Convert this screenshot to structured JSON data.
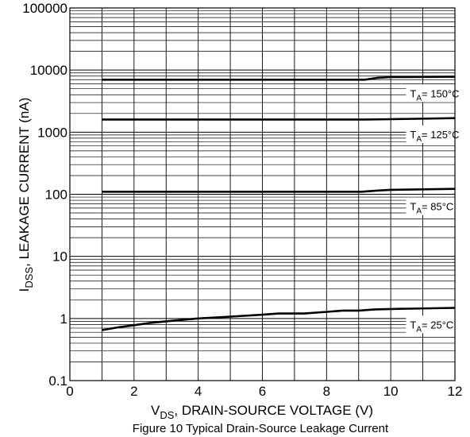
{
  "chart_data": {
    "type": "line",
    "title": "",
    "caption": "Figure 10 Typical Drain-Source Leakage Current",
    "xlabel": {
      "main": "V",
      "sub": "DS",
      "rest": ", DRAIN-SOURCE VOLTAGE (V)"
    },
    "ylabel": {
      "main": "I",
      "sub": "DSS",
      "rest": ", LEAKAGE CURRENT (nA)"
    },
    "xlim": [
      0,
      12
    ],
    "ylim": [
      0.1,
      100000
    ],
    "yscale": "log",
    "grid": true,
    "xticks": [
      0,
      2,
      4,
      6,
      8,
      10,
      12
    ],
    "xtick_labels": [
      "0",
      "2",
      "4",
      "6",
      "8",
      "10",
      "12"
    ],
    "yticks": [
      0.1,
      1,
      10,
      100,
      1000,
      10000,
      100000
    ],
    "ytick_labels": [
      "0.1",
      "1",
      "10",
      "100",
      "1000",
      "10000",
      "100000"
    ],
    "series": [
      {
        "label": {
          "main": "T",
          "sub": "A",
          "rest": "= 150°C"
        },
        "label_at": {
          "x": 10.6,
          "y": 4100
        },
        "points": [
          [
            1,
            7000
          ],
          [
            2,
            7000
          ],
          [
            4,
            7000
          ],
          [
            6,
            7000
          ],
          [
            8,
            7000
          ],
          [
            9.2,
            7000
          ],
          [
            9.6,
            7500
          ],
          [
            10,
            7700
          ],
          [
            12,
            7800
          ]
        ]
      },
      {
        "label": {
          "main": "T",
          "sub": "A",
          "rest": "= 125°C"
        },
        "label_at": {
          "x": 10.6,
          "y": 900
        },
        "points": [
          [
            1,
            1600
          ],
          [
            2,
            1600
          ],
          [
            4,
            1600
          ],
          [
            6,
            1600
          ],
          [
            8,
            1600
          ],
          [
            9.2,
            1600
          ],
          [
            10,
            1620
          ],
          [
            12,
            1680
          ]
        ]
      },
      {
        "label": {
          "main": "T",
          "sub": "A",
          "rest": "= 85°C"
        },
        "label_at": {
          "x": 10.6,
          "y": 62
        },
        "points": [
          [
            1,
            110
          ],
          [
            2,
            110
          ],
          [
            4,
            110
          ],
          [
            6,
            110
          ],
          [
            8,
            110
          ],
          [
            9.1,
            110
          ],
          [
            9.6,
            115
          ],
          [
            10,
            118
          ],
          [
            11,
            120
          ],
          [
            12,
            122
          ]
        ]
      },
      {
        "label": {
          "main": "T",
          "sub": "A",
          "rest": "= 25°C"
        },
        "label_at": {
          "x": 10.6,
          "y": 0.78
        },
        "points": [
          [
            1,
            0.65
          ],
          [
            1.5,
            0.72
          ],
          [
            2,
            0.78
          ],
          [
            2.5,
            0.85
          ],
          [
            3,
            0.9
          ],
          [
            3.5,
            0.95
          ],
          [
            4,
            1.0
          ],
          [
            5,
            1.07
          ],
          [
            6,
            1.15
          ],
          [
            6.5,
            1.2
          ],
          [
            7.3,
            1.2
          ],
          [
            8,
            1.28
          ],
          [
            8.5,
            1.34
          ],
          [
            9,
            1.34
          ],
          [
            9.5,
            1.4
          ],
          [
            10,
            1.42
          ],
          [
            12,
            1.48
          ]
        ]
      }
    ]
  }
}
